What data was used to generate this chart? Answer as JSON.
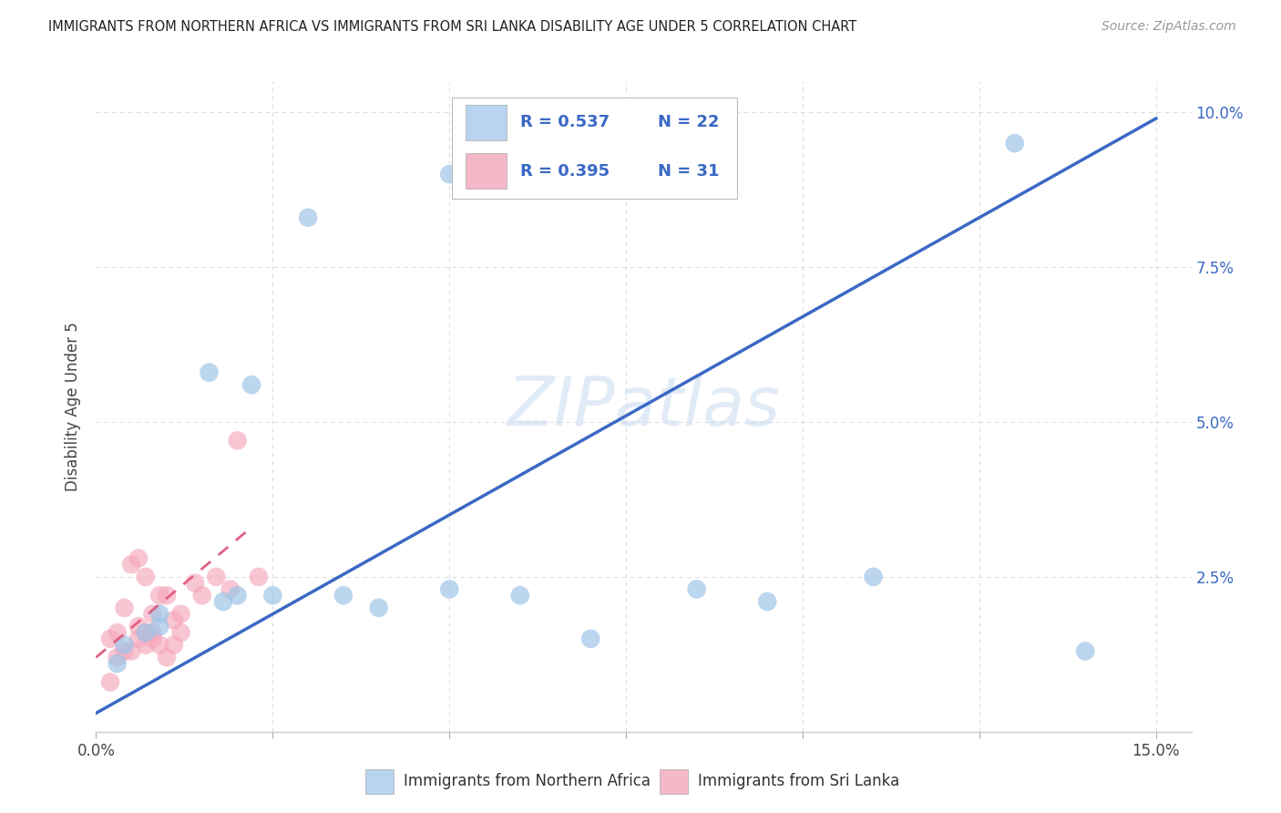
{
  "title": "IMMIGRANTS FROM NORTHERN AFRICA VS IMMIGRANTS FROM SRI LANKA DISABILITY AGE UNDER 5 CORRELATION CHART",
  "source": "Source: ZipAtlas.com",
  "ylabel": "Disability Age Under 5",
  "y_ticks_right": [
    0.0,
    0.025,
    0.05,
    0.075,
    0.1
  ],
  "y_tick_labels_right": [
    "",
    "2.5%",
    "5.0%",
    "7.5%",
    "10.0%"
  ],
  "watermark": "ZIPatlas",
  "blue_scatter_x": [
    0.03,
    0.05,
    0.016,
    0.022,
    0.025,
    0.02,
    0.007,
    0.009,
    0.004,
    0.003,
    0.035,
    0.04,
    0.06,
    0.07,
    0.11,
    0.095,
    0.14,
    0.009,
    0.018,
    0.05,
    0.085,
    0.13
  ],
  "blue_scatter_y": [
    0.083,
    0.09,
    0.058,
    0.056,
    0.022,
    0.022,
    0.016,
    0.017,
    0.014,
    0.011,
    0.022,
    0.02,
    0.022,
    0.015,
    0.025,
    0.021,
    0.013,
    0.019,
    0.021,
    0.023,
    0.023,
    0.095
  ],
  "pink_scatter_x": [
    0.005,
    0.006,
    0.007,
    0.009,
    0.01,
    0.011,
    0.012,
    0.008,
    0.004,
    0.003,
    0.002,
    0.014,
    0.017,
    0.019,
    0.023,
    0.006,
    0.007,
    0.008,
    0.009,
    0.012,
    0.015,
    0.003,
    0.004,
    0.005,
    0.006,
    0.007,
    0.01,
    0.011,
    0.008,
    0.002,
    0.02
  ],
  "pink_scatter_y": [
    0.027,
    0.028,
    0.025,
    0.022,
    0.022,
    0.018,
    0.019,
    0.019,
    0.02,
    0.016,
    0.015,
    0.024,
    0.025,
    0.023,
    0.025,
    0.017,
    0.016,
    0.015,
    0.014,
    0.016,
    0.022,
    0.012,
    0.013,
    0.013,
    0.015,
    0.014,
    0.012,
    0.014,
    0.016,
    0.008,
    0.047
  ],
  "blue_line_x": [
    0.0,
    0.15
  ],
  "blue_line_y": [
    0.003,
    0.099
  ],
  "pink_line_x": [
    0.0,
    0.022
  ],
  "pink_line_y": [
    0.012,
    0.033
  ],
  "blue_scatter_color": "#9ec5e8",
  "pink_scatter_color": "#f5a8bc",
  "blue_line_color": "#3a68c4",
  "pink_line_color": "#e06080",
  "background_color": "#ffffff",
  "grid_color": "#dddddd",
  "xlim": [
    0.0,
    0.155
  ],
  "ylim": [
    0.0,
    0.105
  ],
  "legend_blue_color": "#b8d4f0",
  "legend_pink_color": "#f5b8c8",
  "legend_r_blue": "R = 0.537",
  "legend_n_blue": "N = 22",
  "legend_r_pink": "R = 0.395",
  "legend_n_pink": "N = 31",
  "legend_text_color": "#3a68c4",
  "bottom_legend_blue": "Immigrants from Northern Africa",
  "bottom_legend_pink": "Immigrants from Sri Lanka"
}
